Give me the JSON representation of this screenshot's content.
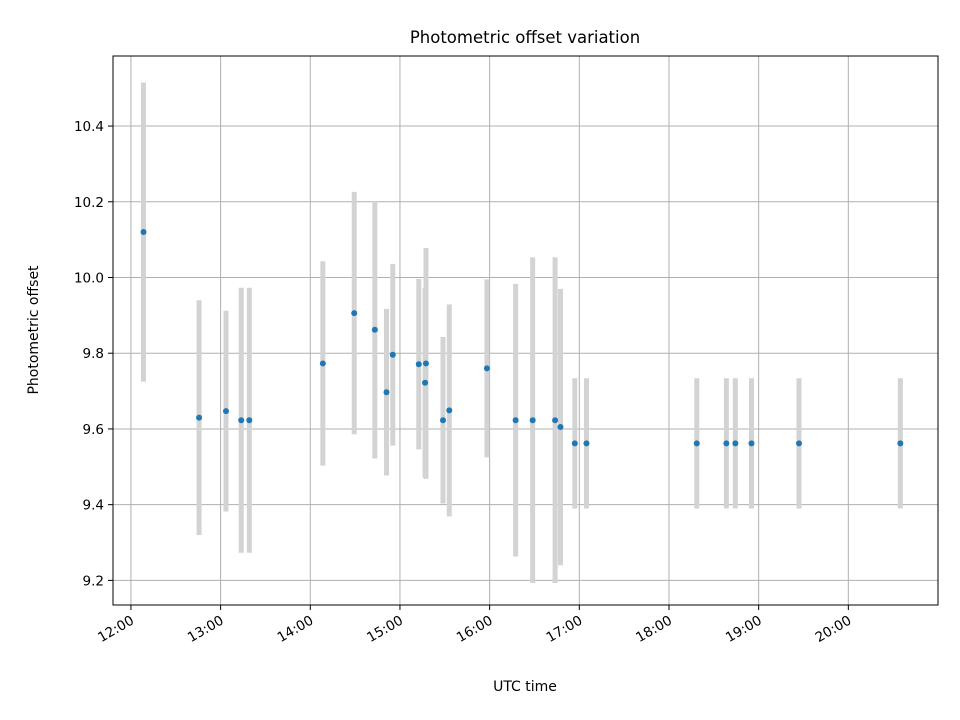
{
  "chart_data": {
    "type": "scatter",
    "title": "Photometric offset variation",
    "xlabel": "UTC time",
    "ylabel": "Photometric offset",
    "xlim": [
      11.8,
      21.0
    ],
    "ylim": [
      9.135,
      10.585
    ],
    "x_ticks": [
      12,
      13,
      14,
      15,
      16,
      17,
      18,
      19,
      20
    ],
    "x_tick_labels": [
      "12:00",
      "13:00",
      "14:00",
      "15:00",
      "16:00",
      "17:00",
      "18:00",
      "19:00",
      "20:00"
    ],
    "y_ticks": [
      9.2,
      9.4,
      9.6,
      9.8,
      10.0,
      10.2,
      10.4
    ],
    "y_tick_labels": [
      "9.2",
      "9.4",
      "9.6",
      "9.8",
      "10.0",
      "10.2",
      "10.4"
    ],
    "grid": true,
    "point_color": "#1f77b4",
    "errorbar_color": "#d3d3d3",
    "series": [
      {
        "name": "offset",
        "points": [
          {
            "x": 12.14,
            "y": 10.12,
            "yerr": 0.395
          },
          {
            "x": 12.76,
            "y": 9.63,
            "yerr": 0.31
          },
          {
            "x": 13.06,
            "y": 9.647,
            "yerr": 0.265
          },
          {
            "x": 13.23,
            "y": 9.623,
            "yerr": 0.35
          },
          {
            "x": 13.32,
            "y": 9.623,
            "yerr": 0.35
          },
          {
            "x": 14.14,
            "y": 9.773,
            "yerr": 0.27
          },
          {
            "x": 14.49,
            "y": 9.906,
            "yerr": 0.32
          },
          {
            "x": 14.72,
            "y": 9.862,
            "yerr": 0.34
          },
          {
            "x": 14.85,
            "y": 9.697,
            "yerr": 0.22
          },
          {
            "x": 14.92,
            "y": 9.796,
            "yerr": 0.24
          },
          {
            "x": 15.21,
            "y": 9.771,
            "yerr": 0.225
          },
          {
            "x": 15.28,
            "y": 9.722,
            "yerr": 0.25
          },
          {
            "x": 15.29,
            "y": 9.773,
            "yerr": 0.305
          },
          {
            "x": 15.48,
            "y": 9.623,
            "yerr": 0.22
          },
          {
            "x": 15.55,
            "y": 9.649,
            "yerr": 0.28
          },
          {
            "x": 15.97,
            "y": 9.76,
            "yerr": 0.235
          },
          {
            "x": 16.29,
            "y": 9.623,
            "yerr": 0.36
          },
          {
            "x": 16.48,
            "y": 9.623,
            "yerr": 0.43
          },
          {
            "x": 16.73,
            "y": 9.623,
            "yerr": 0.43
          },
          {
            "x": 16.79,
            "y": 9.605,
            "yerr": 0.365
          },
          {
            "x": 16.95,
            "y": 9.562,
            "yerr": 0.172
          },
          {
            "x": 17.08,
            "y": 9.562,
            "yerr": 0.172
          },
          {
            "x": 18.31,
            "y": 9.562,
            "yerr": 0.172
          },
          {
            "x": 18.64,
            "y": 9.562,
            "yerr": 0.172
          },
          {
            "x": 18.74,
            "y": 9.562,
            "yerr": 0.172
          },
          {
            "x": 18.92,
            "y": 9.562,
            "yerr": 0.172
          },
          {
            "x": 19.45,
            "y": 9.562,
            "yerr": 0.172
          },
          {
            "x": 20.58,
            "y": 9.562,
            "yerr": 0.172
          }
        ]
      }
    ]
  }
}
